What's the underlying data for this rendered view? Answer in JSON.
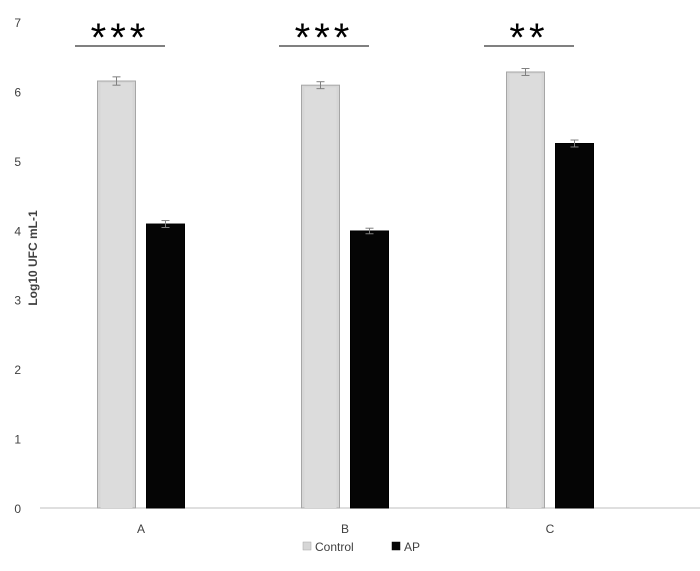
{
  "chart_data": {
    "type": "bar",
    "title": "",
    "xlabel": "",
    "ylabel": "Log10 UFC mL-1",
    "ylim": [
      0,
      7
    ],
    "yticks": [
      "0",
      "1",
      "2",
      "3",
      "4",
      "5",
      "6",
      "7"
    ],
    "categories": [
      "A",
      "B",
      "C"
    ],
    "series": [
      {
        "name": "Control",
        "color": "#d6d6d6",
        "values": [
          6.15,
          6.09,
          6.28
        ],
        "errors": [
          0.06,
          0.05,
          0.05
        ]
      },
      {
        "name": "AP",
        "color": "#050505",
        "values": [
          4.09,
          3.99,
          5.25
        ],
        "errors": [
          0.05,
          0.04,
          0.05
        ]
      }
    ],
    "significance": [
      "***",
      "***",
      "**"
    ],
    "grid": false,
    "legend_position": "bottom"
  }
}
